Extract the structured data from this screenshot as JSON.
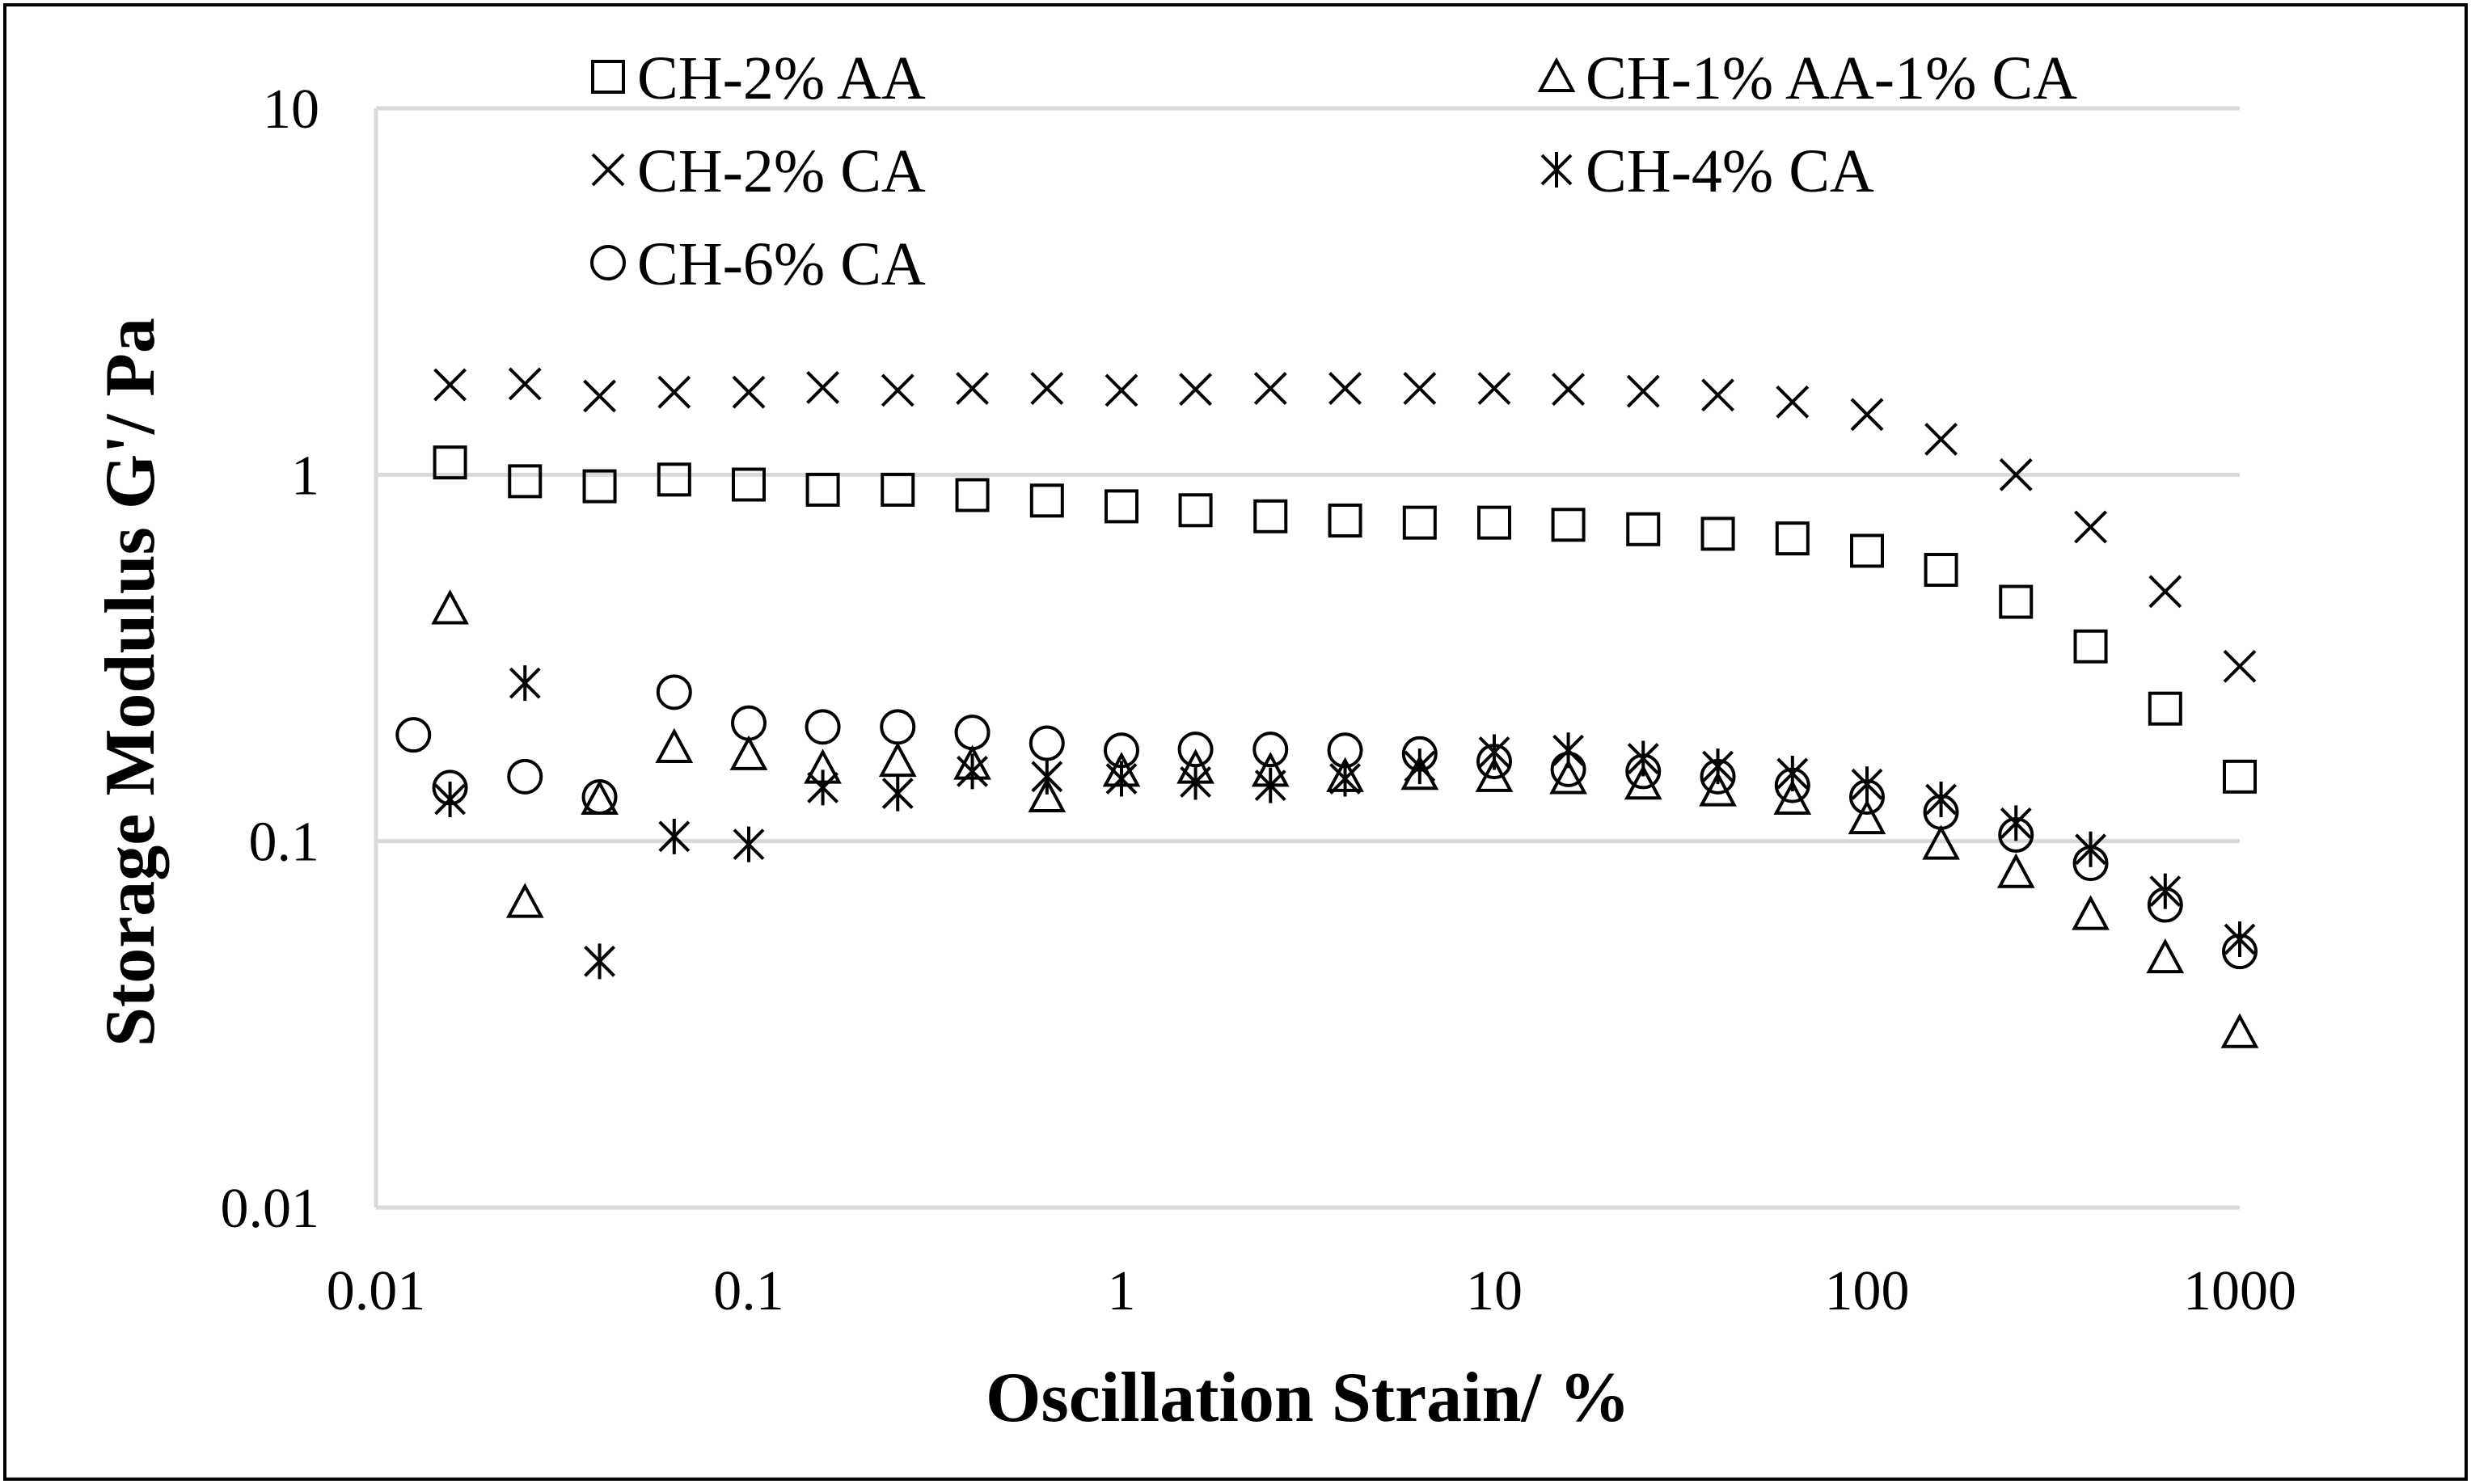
{
  "chart_data": {
    "type": "scatter",
    "title": "",
    "xlabel": "Oscillation Strain/ %",
    "ylabel": "Storage Modulus G'/ Pa",
    "xscale": "log",
    "yscale": "log",
    "xlim": [
      0.01,
      1000
    ],
    "ylim": [
      0.01,
      10
    ],
    "x_ticks": [
      "0.01",
      "0.1",
      "1",
      "10",
      "100",
      "1000"
    ],
    "y_ticks": [
      "0.01",
      "0.1",
      "1",
      "10"
    ],
    "grid": "horizontal",
    "legend_position": "top",
    "series": [
      {
        "name": "CH-2% AA",
        "marker": "square",
        "x": [
          0.0158,
          0.0251,
          0.0398,
          0.0631,
          0.1,
          0.158,
          0.251,
          0.398,
          0.631,
          1,
          1.58,
          2.51,
          3.98,
          6.31,
          10,
          15.8,
          25.1,
          39.8,
          63.1,
          100,
          158,
          251,
          398,
          631,
          1000
        ],
        "y": [
          1.08,
          0.96,
          0.93,
          0.97,
          0.94,
          0.91,
          0.91,
          0.88,
          0.85,
          0.82,
          0.8,
          0.77,
          0.75,
          0.74,
          0.74,
          0.73,
          0.71,
          0.69,
          0.67,
          0.62,
          0.55,
          0.45,
          0.34,
          0.23,
          0.15
        ]
      },
      {
        "name": "CH-1% AA-1% CA",
        "marker": "triangle",
        "x": [
          0.0158,
          0.0251,
          0.0398,
          0.0631,
          0.1,
          0.158,
          0.251,
          0.398,
          0.631,
          1,
          1.58,
          2.51,
          3.98,
          6.31,
          10,
          15.8,
          25.1,
          39.8,
          63.1,
          100,
          158,
          251,
          398,
          631,
          1000
        ],
        "y": [
          0.43,
          0.068,
          0.13,
          0.18,
          0.172,
          0.158,
          0.165,
          0.162,
          0.132,
          0.155,
          0.158,
          0.155,
          0.15,
          0.152,
          0.15,
          0.148,
          0.143,
          0.137,
          0.13,
          0.115,
          0.098,
          0.082,
          0.063,
          0.048,
          0.03
        ]
      },
      {
        "name": "CH-2% CA",
        "marker": "x",
        "x": [
          0.0158,
          0.0251,
          0.0398,
          0.0631,
          0.1,
          0.158,
          0.251,
          0.398,
          0.631,
          1,
          1.58,
          2.51,
          3.98,
          6.31,
          10,
          15.8,
          25.1,
          39.8,
          63.1,
          100,
          158,
          251,
          398,
          631,
          1000
        ],
        "y": [
          1.76,
          1.77,
          1.64,
          1.68,
          1.68,
          1.73,
          1.7,
          1.72,
          1.72,
          1.7,
          1.71,
          1.72,
          1.72,
          1.72,
          1.72,
          1.71,
          1.69,
          1.65,
          1.58,
          1.46,
          1.25,
          1.0,
          0.72,
          0.48,
          0.3
        ]
      },
      {
        "name": "CH-4% CA",
        "marker": "asterisk",
        "x": [
          0.0158,
          0.0251,
          0.0398,
          0.0631,
          0.1,
          0.158,
          0.251,
          0.398,
          0.631,
          1,
          1.58,
          2.51,
          3.98,
          6.31,
          10,
          15.8,
          25.1,
          39.8,
          63.1,
          100,
          158,
          251,
          398,
          631,
          1000
        ],
        "y": [
          0.13,
          0.27,
          0.047,
          0.103,
          0.098,
          0.14,
          0.135,
          0.155,
          0.15,
          0.148,
          0.145,
          0.142,
          0.148,
          0.16,
          0.175,
          0.177,
          0.168,
          0.16,
          0.153,
          0.143,
          0.13,
          0.112,
          0.095,
          0.073,
          0.054
        ]
      },
      {
        "name": "CH-6% CA",
        "marker": "circle",
        "x": [
          0.0126,
          0.0158,
          0.0251,
          0.0398,
          0.0631,
          0.1,
          0.158,
          0.251,
          0.398,
          0.631,
          1,
          1.58,
          2.51,
          3.98,
          6.31,
          10,
          15.8,
          25.1,
          39.8,
          63.1,
          100,
          158,
          251,
          398,
          631,
          1000
        ],
        "y": [
          0.195,
          0.14,
          0.15,
          0.132,
          0.255,
          0.21,
          0.205,
          0.205,
          0.198,
          0.185,
          0.177,
          0.178,
          0.178,
          0.177,
          0.173,
          0.165,
          0.157,
          0.155,
          0.15,
          0.142,
          0.132,
          0.12,
          0.104,
          0.087,
          0.067,
          0.05
        ]
      }
    ]
  }
}
